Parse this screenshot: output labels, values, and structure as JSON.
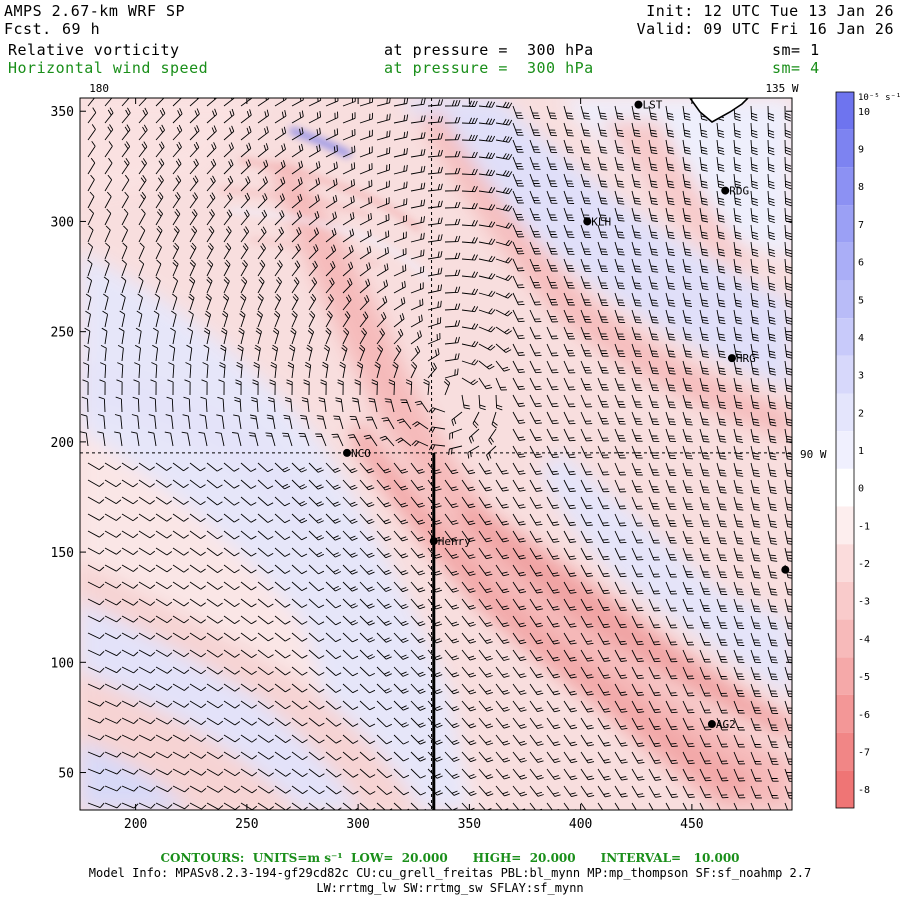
{
  "header": {
    "title_left": "AMPS 2.67-km WRF SP",
    "fcst_label": "Fcst.",
    "fcst_value": "69 h",
    "init": "Init: 12 UTC Tue 13 Jan 26",
    "valid": "Valid: 09 UTC Fri 16 Jan 26",
    "field1": "Relative vorticity",
    "field1_level": "at pressure =  300 hPa",
    "field1_sm": "sm= 1",
    "field2": "Horizontal wind speed",
    "field2_level": "at pressure =  300 hPa",
    "field2_sm": "sm= 4"
  },
  "colorbar": {
    "unit": "10⁻⁵ s⁻¹",
    "levels": [
      "10",
      "9",
      "8",
      "7",
      "6",
      "5",
      "4",
      "3",
      "2",
      "1",
      "0",
      "-1",
      "-2",
      "-3",
      "-4",
      "-5",
      "-6",
      "-7",
      "-8"
    ],
    "colors": [
      "#6e74ef",
      "#7d83f1",
      "#8c91f3",
      "#9ba0f5",
      "#aaaef7",
      "#b9bcf8",
      "#c8cafa",
      "#d7d8fb",
      "#e4e5fc",
      "#f0f0fe",
      "#ffffff",
      "#fdeeee",
      "#fbdcdc",
      "#f9cbcb",
      "#f7baba",
      "#f5a9a9",
      "#f39797",
      "#f18686",
      "#ef7575"
    ]
  },
  "chart_data": {
    "type": "heatmap",
    "xlim": [
      175,
      495
    ],
    "ylim": [
      33,
      356
    ],
    "x_ticks": [
      200,
      250,
      300,
      350,
      400,
      450
    ],
    "y_ticks": [
      50,
      100,
      150,
      200,
      250,
      300,
      350
    ],
    "top_labels": [
      {
        "x": 180,
        "text": "180"
      },
      {
        "x": 135,
        "text": "135 W"
      }
    ],
    "right_label": {
      "text": "90 W",
      "y": 195
    },
    "dashed_lines": {
      "x": 333,
      "y": 195
    },
    "cross_section": {
      "x": 334,
      "y_from": 33,
      "y_to": 195
    },
    "stations": [
      {
        "name": "LST",
        "x": 426,
        "y": 353
      },
      {
        "name": "RDG",
        "x": 465,
        "y": 314
      },
      {
        "name": "KLH",
        "x": 403,
        "y": 300
      },
      {
        "name": "HRG",
        "x": 468,
        "y": 238
      },
      {
        "name": "NCO",
        "x": 295,
        "y": 195
      },
      {
        "name": "Henry",
        "x": 334,
        "y": 155
      },
      {
        "name": "",
        "x": 492,
        "y": 142
      },
      {
        "name": "AG2",
        "x": 459,
        "y": 72
      }
    ],
    "contours": {
      "units": "m s⁻¹",
      "low": "20.000",
      "high": "20.000",
      "interval": "10.000"
    }
  },
  "footer": {
    "contours_line": "CONTOURS:  UNITS=m s⁻¹  LOW=  20.000      HIGH=  20.000      INTERVAL=   10.000",
    "model_line1": "Model Info: MPASv8.2.3-194-gf29cd82c CU:cu_grell_freitas PBL:bl_mynn MP:mp_thompson SF:sf_noahmp 2.7",
    "model_line2": "LW:rrtmg_lw SW:rrtmg_sw SFLAY:sf_mynn"
  }
}
